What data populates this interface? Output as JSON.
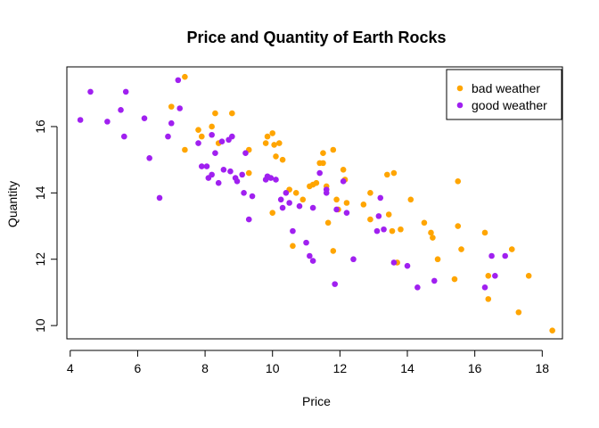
{
  "chart_data": {
    "type": "scatter",
    "title": "Price and Quantity of Earth Rocks",
    "xlabel": "Price",
    "ylabel": "Quantity",
    "xlim": [
      3.9,
      18.6
    ],
    "ylim": [
      9.6,
      17.8
    ],
    "xticks": [
      4,
      6,
      8,
      10,
      12,
      14,
      16,
      18
    ],
    "yticks": [
      10,
      12,
      14,
      16
    ],
    "legend_position": "top-right",
    "series": [
      {
        "name": "bad weather",
        "color": "#FFA500",
        "points": [
          [
            7.4,
            17.5
          ],
          [
            7.0,
            16.6
          ],
          [
            7.4,
            15.3
          ],
          [
            7.8,
            15.9
          ],
          [
            7.9,
            15.7
          ],
          [
            8.2,
            16.0
          ],
          [
            8.3,
            16.4
          ],
          [
            8.4,
            15.5
          ],
          [
            8.8,
            16.4
          ],
          [
            9.3,
            15.3
          ],
          [
            9.3,
            14.6
          ],
          [
            9.8,
            15.5
          ],
          [
            9.85,
            15.7
          ],
          [
            10.0,
            15.8
          ],
          [
            10.05,
            15.45
          ],
          [
            10.2,
            15.5
          ],
          [
            10.1,
            15.1
          ],
          [
            10.3,
            15.0
          ],
          [
            10.0,
            13.4
          ],
          [
            10.5,
            14.1
          ],
          [
            10.6,
            12.4
          ],
          [
            10.7,
            14.0
          ],
          [
            10.9,
            13.8
          ],
          [
            11.1,
            14.2
          ],
          [
            11.2,
            14.25
          ],
          [
            11.3,
            14.3
          ],
          [
            11.4,
            14.9
          ],
          [
            11.5,
            14.9
          ],
          [
            11.5,
            15.2
          ],
          [
            11.6,
            14.2
          ],
          [
            11.65,
            13.1
          ],
          [
            11.8,
            12.25
          ],
          [
            11.8,
            15.3
          ],
          [
            11.9,
            13.8
          ],
          [
            11.95,
            13.5
          ],
          [
            12.1,
            14.7
          ],
          [
            12.15,
            14.4
          ],
          [
            12.2,
            13.7
          ],
          [
            12.7,
            13.65
          ],
          [
            12.9,
            13.2
          ],
          [
            12.9,
            14.0
          ],
          [
            13.4,
            14.55
          ],
          [
            13.6,
            14.6
          ],
          [
            13.45,
            13.35
          ],
          [
            13.55,
            12.85
          ],
          [
            13.8,
            12.9
          ],
          [
            13.7,
            11.9
          ],
          [
            14.1,
            13.8
          ],
          [
            14.5,
            13.1
          ],
          [
            14.7,
            12.8
          ],
          [
            14.75,
            12.65
          ],
          [
            14.9,
            12.0
          ],
          [
            15.4,
            11.4
          ],
          [
            15.5,
            14.35
          ],
          [
            15.5,
            13.0
          ],
          [
            15.6,
            12.3
          ],
          [
            16.3,
            12.8
          ],
          [
            16.4,
            11.5
          ],
          [
            16.4,
            10.8
          ],
          [
            17.1,
            12.3
          ],
          [
            17.3,
            10.4
          ],
          [
            17.6,
            11.5
          ],
          [
            18.3,
            9.85
          ]
        ]
      },
      {
        "name": "good weather",
        "color": "#A020F0",
        "points": [
          [
            4.3,
            16.2
          ],
          [
            4.6,
            17.05
          ],
          [
            5.1,
            16.15
          ],
          [
            5.5,
            16.5
          ],
          [
            5.6,
            15.7
          ],
          [
            5.65,
            17.05
          ],
          [
            6.2,
            16.25
          ],
          [
            6.35,
            15.05
          ],
          [
            6.65,
            13.85
          ],
          [
            6.9,
            15.7
          ],
          [
            7.0,
            16.1
          ],
          [
            7.2,
            17.4
          ],
          [
            7.25,
            16.55
          ],
          [
            7.8,
            15.5
          ],
          [
            7.9,
            14.8
          ],
          [
            8.05,
            14.8
          ],
          [
            8.1,
            14.45
          ],
          [
            8.2,
            14.55
          ],
          [
            8.2,
            15.75
          ],
          [
            8.3,
            15.2
          ],
          [
            8.4,
            14.3
          ],
          [
            8.5,
            15.55
          ],
          [
            8.55,
            14.7
          ],
          [
            8.7,
            15.6
          ],
          [
            8.75,
            14.65
          ],
          [
            8.8,
            15.7
          ],
          [
            8.9,
            14.45
          ],
          [
            8.95,
            14.35
          ],
          [
            9.1,
            14.55
          ],
          [
            9.15,
            14.0
          ],
          [
            9.2,
            15.2
          ],
          [
            9.3,
            13.2
          ],
          [
            9.4,
            13.9
          ],
          [
            9.8,
            14.4
          ],
          [
            9.85,
            14.5
          ],
          [
            9.95,
            14.45
          ],
          [
            10.1,
            14.4
          ],
          [
            10.25,
            13.8
          ],
          [
            10.3,
            13.55
          ],
          [
            10.4,
            14.0
          ],
          [
            10.5,
            13.7
          ],
          [
            10.6,
            12.85
          ],
          [
            10.8,
            13.6
          ],
          [
            11.0,
            12.5
          ],
          [
            11.1,
            12.1
          ],
          [
            11.2,
            11.95
          ],
          [
            11.2,
            13.55
          ],
          [
            11.4,
            14.6
          ],
          [
            11.6,
            14.0
          ],
          [
            11.6,
            14.1
          ],
          [
            11.85,
            11.25
          ],
          [
            11.9,
            13.5
          ],
          [
            12.1,
            14.35
          ],
          [
            12.2,
            13.4
          ],
          [
            12.4,
            12.0
          ],
          [
            13.1,
            12.85
          ],
          [
            13.15,
            13.3
          ],
          [
            13.2,
            13.85
          ],
          [
            13.3,
            12.9
          ],
          [
            13.6,
            11.9
          ],
          [
            14.0,
            11.8
          ],
          [
            14.3,
            11.15
          ],
          [
            14.8,
            11.35
          ],
          [
            16.3,
            11.15
          ],
          [
            16.5,
            12.1
          ],
          [
            16.6,
            11.5
          ],
          [
            16.9,
            12.1
          ]
        ]
      }
    ]
  }
}
